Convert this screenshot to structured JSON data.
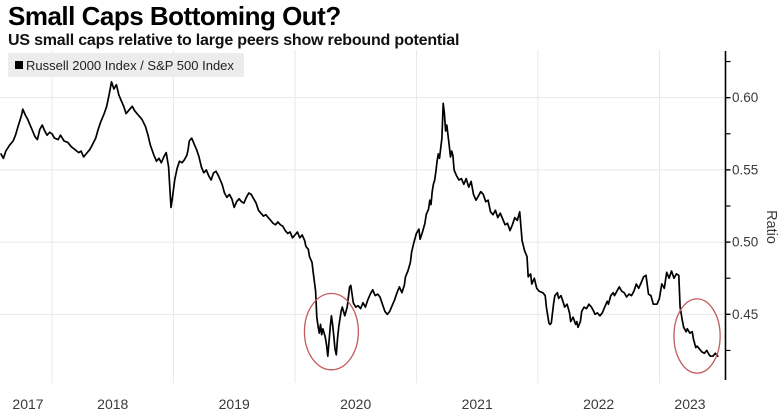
{
  "header": {
    "title": "Small Caps Bottoming Out?",
    "subtitle": "US small caps relative to large peers show rebound potential"
  },
  "legend": {
    "label": "Russell 2000 Index / S&P 500 Index",
    "swatch_color": "#000000",
    "background": "#ececec"
  },
  "chart_data": {
    "type": "line",
    "title": "Small Caps Bottoming Out?",
    "subtitle": "US small caps relative to large peers show rebound potential",
    "series_name": "Russell 2000 Index / S&P 500 Index",
    "ylabel": "Ratio",
    "xlabel": "",
    "grid": true,
    "legend_position": "top-left",
    "xlim": [
      2017.572,
      2023.54
    ],
    "ylim": [
      0.408,
      0.633
    ],
    "x_ticks": [
      "2017",
      "2018",
      "2019",
      "2020",
      "2021",
      "2022",
      "2023"
    ],
    "x_tick_years": [
      2017,
      2018,
      2019,
      2020,
      2021,
      2022,
      2023
    ],
    "x_gridline_years": [
      2018,
      2019,
      2020,
      2021,
      2022,
      2023
    ],
    "y_ticks": [
      0.45,
      0.5,
      0.55,
      0.6
    ],
    "y_tick_labels": [
      "0.45",
      "0.50",
      "0.55",
      "0.60"
    ],
    "y_minor_ticks": [
      0.425,
      0.475,
      0.525,
      0.575,
      0.625
    ],
    "line_color": "#000000",
    "grid_color": "#e8e8e8",
    "axis_color": "#000000",
    "tick_label_color": "#3a3a3a",
    "annotation_color": "#c25b5b",
    "annotations": [
      {
        "name": "circle-2020-low",
        "cx_year": 2020.3,
        "cy_ratio": 0.438,
        "rx_years": 0.222,
        "ry_ratio": 0.0264
      },
      {
        "name": "circle-2023-low",
        "cx_year": 2023.31,
        "cy_ratio": 0.435,
        "rx_years": 0.19,
        "ry_ratio": 0.0257
      }
    ],
    "points": [
      [
        2017.58,
        0.561
      ],
      [
        2017.6,
        0.558
      ],
      [
        2017.62,
        0.563
      ],
      [
        2017.65,
        0.567
      ],
      [
        2017.68,
        0.57
      ],
      [
        2017.7,
        0.574
      ],
      [
        2017.72,
        0.58
      ],
      [
        2017.75,
        0.588
      ],
      [
        2017.76,
        0.592
      ],
      [
        2017.78,
        0.588
      ],
      [
        2017.8,
        0.585
      ],
      [
        2017.82,
        0.581
      ],
      [
        2017.84,
        0.577
      ],
      [
        2017.86,
        0.573
      ],
      [
        2017.88,
        0.571
      ],
      [
        2017.9,
        0.578
      ],
      [
        2017.92,
        0.581
      ],
      [
        2017.94,
        0.577
      ],
      [
        2017.96,
        0.574
      ],
      [
        2017.98,
        0.576
      ],
      [
        2018.0,
        0.575
      ],
      [
        2018.02,
        0.572
      ],
      [
        2018.05,
        0.571
      ],
      [
        2018.07,
        0.574
      ],
      [
        2018.1,
        0.57
      ],
      [
        2018.13,
        0.569
      ],
      [
        2018.16,
        0.566
      ],
      [
        2018.19,
        0.564
      ],
      [
        2018.22,
        0.562
      ],
      [
        2018.24,
        0.563
      ],
      [
        2018.26,
        0.559
      ],
      [
        2018.28,
        0.561
      ],
      [
        2018.31,
        0.564
      ],
      [
        2018.33,
        0.567
      ],
      [
        2018.36,
        0.572
      ],
      [
        2018.38,
        0.578
      ],
      [
        2018.4,
        0.583
      ],
      [
        2018.43,
        0.589
      ],
      [
        2018.45,
        0.594
      ],
      [
        2018.47,
        0.602
      ],
      [
        2018.49,
        0.611
      ],
      [
        2018.51,
        0.606
      ],
      [
        2018.53,
        0.609
      ],
      [
        2018.55,
        0.602
      ],
      [
        2018.57,
        0.598
      ],
      [
        2018.59,
        0.594
      ],
      [
        2018.61,
        0.589
      ],
      [
        2018.63,
        0.591
      ],
      [
        2018.66,
        0.594
      ],
      [
        2018.68,
        0.591
      ],
      [
        2018.71,
        0.588
      ],
      [
        2018.74,
        0.585
      ],
      [
        2018.77,
        0.58
      ],
      [
        2018.79,
        0.574
      ],
      [
        2018.81,
        0.567
      ],
      [
        2018.84,
        0.56
      ],
      [
        2018.86,
        0.556
      ],
      [
        2018.88,
        0.558
      ],
      [
        2018.9,
        0.555
      ],
      [
        2018.92,
        0.559
      ],
      [
        2018.94,
        0.562
      ],
      [
        2018.96,
        0.552
      ],
      [
        2018.97,
        0.538
      ],
      [
        2018.98,
        0.524
      ],
      [
        2018.99,
        0.53
      ],
      [
        2019.01,
        0.543
      ],
      [
        2019.03,
        0.551
      ],
      [
        2019.05,
        0.556
      ],
      [
        2019.07,
        0.555
      ],
      [
        2019.09,
        0.557
      ],
      [
        2019.11,
        0.56
      ],
      [
        2019.12,
        0.564
      ],
      [
        2019.13,
        0.57
      ],
      [
        2019.15,
        0.572
      ],
      [
        2019.17,
        0.568
      ],
      [
        2019.19,
        0.564
      ],
      [
        2019.21,
        0.559
      ],
      [
        2019.23,
        0.552
      ],
      [
        2019.25,
        0.548
      ],
      [
        2019.27,
        0.55
      ],
      [
        2019.29,
        0.546
      ],
      [
        2019.31,
        0.543
      ],
      [
        2019.33,
        0.548
      ],
      [
        2019.35,
        0.549
      ],
      [
        2019.37,
        0.546
      ],
      [
        2019.4,
        0.54
      ],
      [
        2019.42,
        0.534
      ],
      [
        2019.44,
        0.531
      ],
      [
        2019.46,
        0.533
      ],
      [
        2019.48,
        0.53
      ],
      [
        2019.5,
        0.524
      ],
      [
        2019.52,
        0.528
      ],
      [
        2019.54,
        0.53
      ],
      [
        2019.56,
        0.528
      ],
      [
        2019.58,
        0.527
      ],
      [
        2019.6,
        0.531
      ],
      [
        2019.62,
        0.534
      ],
      [
        2019.64,
        0.533
      ],
      [
        2019.66,
        0.53
      ],
      [
        2019.68,
        0.527
      ],
      [
        2019.7,
        0.522
      ],
      [
        2019.72,
        0.52
      ],
      [
        2019.74,
        0.518
      ],
      [
        2019.76,
        0.519
      ],
      [
        2019.78,
        0.517
      ],
      [
        2019.8,
        0.515
      ],
      [
        2019.82,
        0.513
      ],
      [
        2019.84,
        0.512
      ],
      [
        2019.86,
        0.514
      ],
      [
        2019.88,
        0.512
      ],
      [
        2019.9,
        0.511
      ],
      [
        2019.92,
        0.508
      ],
      [
        2019.94,
        0.506
      ],
      [
        2019.96,
        0.507
      ],
      [
        2019.98,
        0.503
      ],
      [
        2020.0,
        0.505
      ],
      [
        2020.02,
        0.507
      ],
      [
        2020.04,
        0.503
      ],
      [
        2020.06,
        0.505
      ],
      [
        2020.08,
        0.501
      ],
      [
        2020.09,
        0.497
      ],
      [
        2020.11,
        0.495
      ],
      [
        2020.12,
        0.49
      ],
      [
        2020.14,
        0.486
      ],
      [
        2020.15,
        0.479
      ],
      [
        2020.17,
        0.466
      ],
      [
        2020.18,
        0.448
      ],
      [
        2020.19,
        0.442
      ],
      [
        2020.2,
        0.437
      ],
      [
        2020.21,
        0.443
      ],
      [
        2020.22,
        0.436
      ],
      [
        2020.23,
        0.44
      ],
      [
        2020.25,
        0.434
      ],
      [
        2020.26,
        0.429
      ],
      [
        2020.27,
        0.421
      ],
      [
        2020.28,
        0.431
      ],
      [
        2020.29,
        0.441
      ],
      [
        2020.3,
        0.449
      ],
      [
        2020.31,
        0.443
      ],
      [
        2020.32,
        0.435
      ],
      [
        2020.33,
        0.426
      ],
      [
        2020.34,
        0.422
      ],
      [
        2020.35,
        0.433
      ],
      [
        2020.36,
        0.441
      ],
      [
        2020.38,
        0.452
      ],
      [
        2020.39,
        0.455
      ],
      [
        2020.41,
        0.449
      ],
      [
        2020.43,
        0.455
      ],
      [
        2020.45,
        0.469
      ],
      [
        2020.46,
        0.47
      ],
      [
        2020.48,
        0.458
      ],
      [
        2020.5,
        0.455
      ],
      [
        2020.52,
        0.456
      ],
      [
        2020.54,
        0.454
      ],
      [
        2020.56,
        0.458
      ],
      [
        2020.58,
        0.455
      ],
      [
        2020.6,
        0.46
      ],
      [
        2020.62,
        0.464
      ],
      [
        2020.64,
        0.467
      ],
      [
        2020.66,
        0.463
      ],
      [
        2020.68,
        0.464
      ],
      [
        2020.7,
        0.462
      ],
      [
        2020.72,
        0.457
      ],
      [
        2020.74,
        0.452
      ],
      [
        2020.76,
        0.45
      ],
      [
        2020.78,
        0.452
      ],
      [
        2020.8,
        0.456
      ],
      [
        2020.82,
        0.46
      ],
      [
        2020.84,
        0.465
      ],
      [
        2020.86,
        0.469
      ],
      [
        2020.88,
        0.465
      ],
      [
        2020.9,
        0.47
      ],
      [
        2020.91,
        0.476
      ],
      [
        2020.93,
        0.48
      ],
      [
        2020.95,
        0.486
      ],
      [
        2020.96,
        0.493
      ],
      [
        2020.98,
        0.5
      ],
      [
        2021.0,
        0.506
      ],
      [
        2021.02,
        0.509
      ],
      [
        2021.03,
        0.502
      ],
      [
        2021.05,
        0.507
      ],
      [
        2021.07,
        0.513
      ],
      [
        2021.08,
        0.519
      ],
      [
        2021.1,
        0.523
      ],
      [
        2021.11,
        0.529
      ],
      [
        2021.12,
        0.526
      ],
      [
        2021.13,
        0.535
      ],
      [
        2021.14,
        0.54
      ],
      [
        2021.15,
        0.543
      ],
      [
        2021.16,
        0.549
      ],
      [
        2021.17,
        0.556
      ],
      [
        2021.18,
        0.561
      ],
      [
        2021.19,
        0.558
      ],
      [
        2021.2,
        0.565
      ],
      [
        2021.21,
        0.572
      ],
      [
        2021.22,
        0.596
      ],
      [
        2021.23,
        0.589
      ],
      [
        2021.24,
        0.577
      ],
      [
        2021.25,
        0.581
      ],
      [
        2021.26,
        0.574
      ],
      [
        2021.27,
        0.567
      ],
      [
        2021.28,
        0.559
      ],
      [
        2021.29,
        0.563
      ],
      [
        2021.3,
        0.56
      ],
      [
        2021.31,
        0.55
      ],
      [
        2021.33,
        0.546
      ],
      [
        2021.35,
        0.543
      ],
      [
        2021.37,
        0.544
      ],
      [
        2021.39,
        0.54
      ],
      [
        2021.41,
        0.544
      ],
      [
        2021.43,
        0.538
      ],
      [
        2021.45,
        0.542
      ],
      [
        2021.47,
        0.533
      ],
      [
        2021.49,
        0.529
      ],
      [
        2021.51,
        0.532
      ],
      [
        2021.53,
        0.535
      ],
      [
        2021.55,
        0.533
      ],
      [
        2021.57,
        0.528
      ],
      [
        2021.59,
        0.529
      ],
      [
        2021.61,
        0.521
      ],
      [
        2021.63,
        0.519
      ],
      [
        2021.65,
        0.522
      ],
      [
        2021.67,
        0.517
      ],
      [
        2021.69,
        0.52
      ],
      [
        2021.71,
        0.516
      ],
      [
        2021.73,
        0.512
      ],
      [
        2021.75,
        0.513
      ],
      [
        2021.77,
        0.508
      ],
      [
        2021.79,
        0.512
      ],
      [
        2021.81,
        0.517
      ],
      [
        2021.83,
        0.515
      ],
      [
        2021.85,
        0.521
      ],
      [
        2021.87,
        0.501
      ],
      [
        2021.89,
        0.494
      ],
      [
        2021.91,
        0.49
      ],
      [
        2021.92,
        0.476
      ],
      [
        2021.94,
        0.478
      ],
      [
        2021.95,
        0.471
      ],
      [
        2021.97,
        0.475
      ],
      [
        2021.99,
        0.468
      ],
      [
        2022.01,
        0.466
      ],
      [
        2022.04,
        0.465
      ],
      [
        2022.06,
        0.463
      ],
      [
        2022.07,
        0.455
      ],
      [
        2022.09,
        0.444
      ],
      [
        2022.1,
        0.443
      ],
      [
        2022.11,
        0.444
      ],
      [
        2022.13,
        0.458
      ],
      [
        2022.14,
        0.463
      ],
      [
        2022.16,
        0.465
      ],
      [
        2022.17,
        0.461
      ],
      [
        2022.19,
        0.463
      ],
      [
        2022.21,
        0.458
      ],
      [
        2022.22,
        0.455
      ],
      [
        2022.24,
        0.457
      ],
      [
        2022.26,
        0.451
      ],
      [
        2022.27,
        0.445
      ],
      [
        2022.29,
        0.448
      ],
      [
        2022.31,
        0.443
      ],
      [
        2022.32,
        0.445
      ],
      [
        2022.33,
        0.441
      ],
      [
        2022.35,
        0.445
      ],
      [
        2022.36,
        0.452
      ],
      [
        2022.38,
        0.455
      ],
      [
        2022.4,
        0.454
      ],
      [
        2022.42,
        0.457
      ],
      [
        2022.44,
        0.455
      ],
      [
        2022.46,
        0.452
      ],
      [
        2022.47,
        0.45
      ],
      [
        2022.49,
        0.451
      ],
      [
        2022.51,
        0.449
      ],
      [
        2022.53,
        0.451
      ],
      [
        2022.55,
        0.455
      ],
      [
        2022.57,
        0.459
      ],
      [
        2022.58,
        0.457
      ],
      [
        2022.6,
        0.463
      ],
      [
        2022.62,
        0.465
      ],
      [
        2022.63,
        0.463
      ],
      [
        2022.65,
        0.466
      ],
      [
        2022.67,
        0.469
      ],
      [
        2022.69,
        0.466
      ],
      [
        2022.71,
        0.465
      ],
      [
        2022.73,
        0.462
      ],
      [
        2022.75,
        0.464
      ],
      [
        2022.77,
        0.463
      ],
      [
        2022.79,
        0.466
      ],
      [
        2022.81,
        0.471
      ],
      [
        2022.83,
        0.468
      ],
      [
        2022.85,
        0.472
      ],
      [
        2022.87,
        0.476
      ],
      [
        2022.89,
        0.477
      ],
      [
        2022.91,
        0.464
      ],
      [
        2022.93,
        0.463
      ],
      [
        2022.95,
        0.457
      ],
      [
        2022.98,
        0.457
      ],
      [
        2023.0,
        0.461
      ],
      [
        2023.02,
        0.471
      ],
      [
        2023.04,
        0.468
      ],
      [
        2023.06,
        0.479
      ],
      [
        2023.08,
        0.475
      ],
      [
        2023.1,
        0.48
      ],
      [
        2023.12,
        0.475
      ],
      [
        2023.14,
        0.478
      ],
      [
        2023.16,
        0.477
      ],
      [
        2023.17,
        0.455
      ],
      [
        2023.19,
        0.445
      ],
      [
        2023.2,
        0.441
      ],
      [
        2023.22,
        0.438
      ],
      [
        2023.23,
        0.44
      ],
      [
        2023.25,
        0.437
      ],
      [
        2023.27,
        0.438
      ],
      [
        2023.28,
        0.433
      ],
      [
        2023.3,
        0.427
      ],
      [
        2023.31,
        0.428
      ],
      [
        2023.33,
        0.426
      ],
      [
        2023.35,
        0.424
      ],
      [
        2023.37,
        0.423
      ],
      [
        2023.39,
        0.425
      ],
      [
        2023.41,
        0.422
      ],
      [
        2023.42,
        0.421
      ],
      [
        2023.44,
        0.421
      ],
      [
        2023.46,
        0.423
      ],
      [
        2023.48,
        0.421
      ]
    ]
  }
}
